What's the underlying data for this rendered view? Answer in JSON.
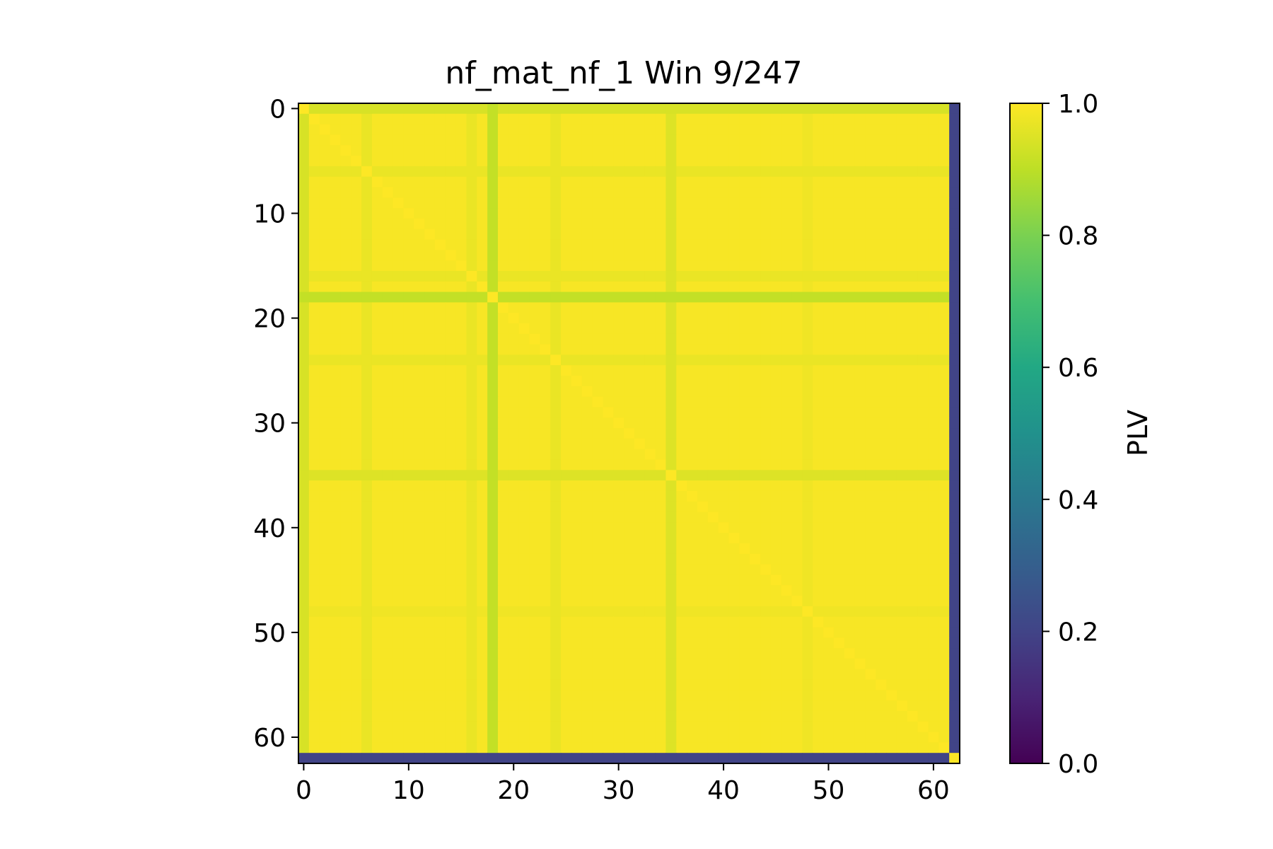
{
  "chart_data": {
    "type": "heatmap",
    "title": "nf_mat_nf_1 Win 9/247",
    "xlabel": "",
    "ylabel": "",
    "n": 63,
    "x_ticks": [
      0,
      10,
      20,
      30,
      40,
      50,
      60
    ],
    "y_ticks": [
      0,
      10,
      20,
      30,
      40,
      50,
      60
    ],
    "base_value": 0.99,
    "diagonal_value": 1.0,
    "row_col_profile": [
      {
        "index": 0,
        "value": 0.94
      },
      {
        "index": 6,
        "value": 0.97
      },
      {
        "index": 16,
        "value": 0.97
      },
      {
        "index": 18,
        "value": 0.91
      },
      {
        "index": 24,
        "value": 0.97
      },
      {
        "index": 35,
        "value": 0.95
      },
      {
        "index": 48,
        "value": 0.98
      },
      {
        "index": 62,
        "value": 0.2
      }
    ],
    "colorbar": {
      "label": "PLV",
      "min": 0.0,
      "max": 1.0,
      "ticks": [
        "0.0",
        "0.2",
        "0.4",
        "0.6",
        "0.8",
        "1.0"
      ],
      "colormap": "viridis"
    },
    "grid": false
  }
}
